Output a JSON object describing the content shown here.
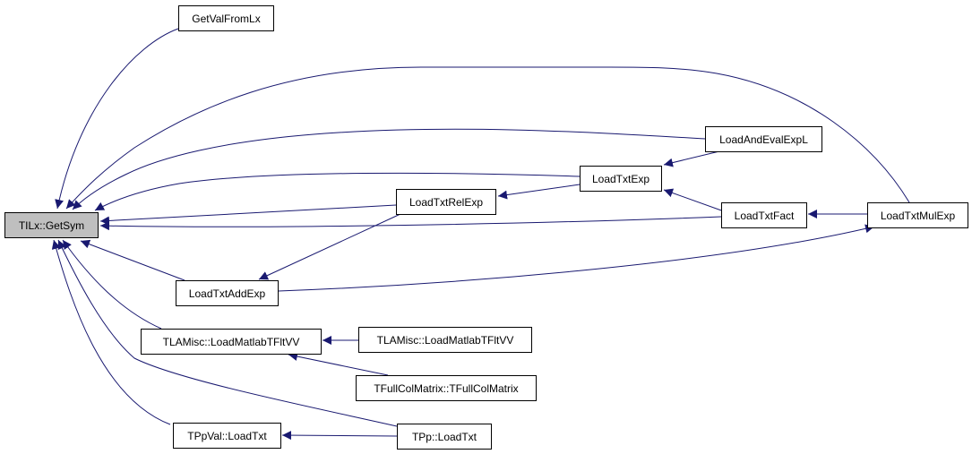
{
  "colors": {
    "edge": "#191970",
    "root_fill": "#bfbfbf",
    "node_fill": "#ffffff",
    "border": "#000000"
  },
  "nodes": {
    "getsym": "TILx::GetSym",
    "getvalfromlx": "GetValFromLx",
    "loadtxtrelexp": "LoadTxtRelExp",
    "loadtxtaddexp": "LoadTxtAddExp",
    "loadmatlab1": "TLAMisc::LoadMatlabTFltVV",
    "loadmatlab2": "TLAMisc::LoadMatlabTFltVV",
    "tfullcolmatrix": "TFullColMatrix::TFullColMatrix",
    "tppval": "TPpVal::LoadTxt",
    "tpp": "TPp::LoadTxt",
    "loadandevalexpl": "LoadAndEvalExpL",
    "loadtxtexp": "LoadTxtExp",
    "loadtxtfact": "LoadTxtFact",
    "loadtxtmulexp": "LoadTxtMulExp"
  },
  "edges": [
    {
      "from": "getvalfromlx",
      "to": "getsym"
    },
    {
      "from": "loadtxtmulexp",
      "to": "getsym"
    },
    {
      "from": "loadandevalexpl",
      "to": "getsym"
    },
    {
      "from": "loadtxtexp",
      "to": "getsym"
    },
    {
      "from": "loadtxtrelexp",
      "to": "getsym"
    },
    {
      "from": "loadtxtfact",
      "to": "getsym"
    },
    {
      "from": "loadtxtaddexp",
      "to": "getsym"
    },
    {
      "from": "loadmatlab1",
      "to": "getsym"
    },
    {
      "from": "tpp",
      "to": "getsym"
    },
    {
      "from": "tppval",
      "to": "getsym"
    },
    {
      "from": "loadtxtaddexp",
      "to": "loadtxtrelexp"
    },
    {
      "from": "loadtxtaddexp",
      "to": "loadtxtmulexp"
    },
    {
      "from": "loadtxtexp",
      "to": "loadtxtrelexp"
    },
    {
      "from": "loadandevalexpl",
      "to": "loadtxtexp"
    },
    {
      "from": "loadtxtfact",
      "to": "loadtxtexp"
    },
    {
      "from": "loadtxtmulexp",
      "to": "loadtxtfact"
    },
    {
      "from": "loadmatlab2",
      "to": "loadmatlab1"
    },
    {
      "from": "tfullcolmatrix",
      "to": "loadmatlab1"
    },
    {
      "from": "tpp",
      "to": "tppval"
    }
  ]
}
